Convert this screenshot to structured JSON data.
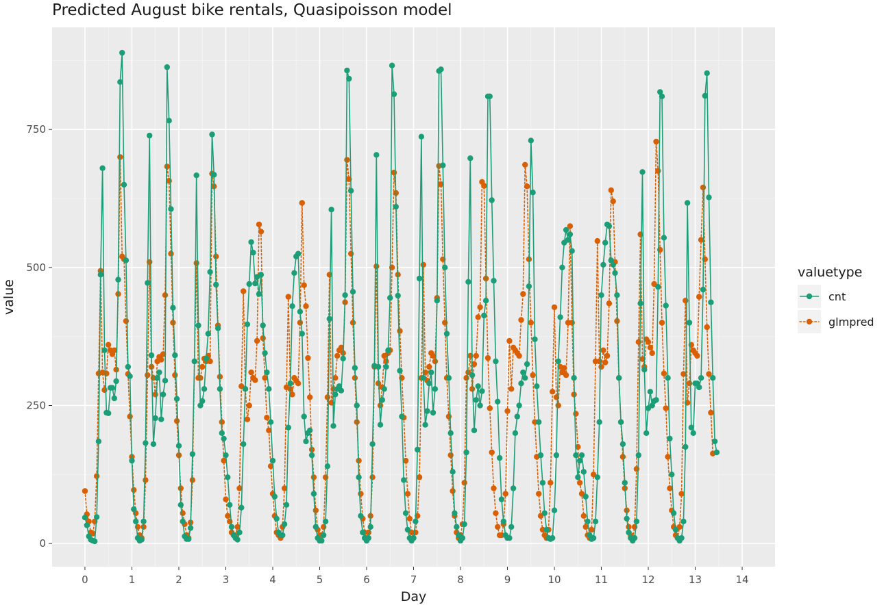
{
  "chart_data": {
    "type": "line",
    "title": "Predicted August bike rentals, Quasipoisson model",
    "xlabel": "Day",
    "ylabel": "value",
    "xlim": [
      -0.7,
      14.7
    ],
    "ylim": [
      -42,
      935
    ],
    "x_ticks": [
      0,
      1,
      2,
      3,
      4,
      5,
      6,
      7,
      8,
      9,
      10,
      11,
      12,
      13,
      14
    ],
    "x_tick_labels": [
      "0",
      "1",
      "2",
      "3",
      "4",
      "5",
      "6",
      "7",
      "8",
      "9",
      "10",
      "11",
      "12",
      "13",
      "14"
    ],
    "y_ticks": [
      0,
      250,
      500,
      750
    ],
    "y_tick_labels": [
      "0",
      "250",
      "500",
      "750"
    ],
    "grid": true,
    "legend": {
      "title": "valuetype",
      "position": "right"
    },
    "series": [
      {
        "name": "cnt",
        "color": "#1b9e77",
        "line": "solid",
        "values": [
          47,
          33,
          13,
          7,
          5,
          4,
          48,
          185,
          487,
          680,
          350,
          237,
          236,
          282,
          282,
          263,
          294,
          478,
          836,
          889,
          650,
          513,
          320,
          303,
          150,
          62,
          40,
          10,
          5,
          7,
          40,
          182,
          472,
          739,
          341,
          180,
          227,
          300,
          310,
          225,
          270,
          295,
          863,
          766,
          606,
          427,
          341,
          262,
          177,
          70,
          40,
          13,
          8,
          8,
          28,
          162,
          330,
          667,
          395,
          250,
          258,
          280,
          335,
          380,
          492,
          741,
          668,
          469,
          390,
          280,
          200,
          190,
          160,
          120,
          70,
          30,
          15,
          10,
          7,
          20,
          65,
          180,
          280,
          397,
          470,
          546,
          527,
          471,
          483,
          452,
          487,
          395,
          345,
          310,
          280,
          220,
          150,
          85,
          45,
          20,
          15,
          15,
          35,
          70,
          210,
          290,
          430,
          490,
          520,
          525,
          420,
          380,
          230,
          185,
          200,
          205,
          160,
          90,
          30,
          10,
          5,
          5,
          15,
          40,
          140,
          407,
          605,
          213,
          270,
          280,
          285,
          277,
          335,
          450,
          857,
          842,
          639,
          456,
          318,
          250,
          120,
          50,
          20,
          10,
          5,
          10,
          30,
          180,
          322,
          704,
          320,
          215,
          260,
          280,
          320,
          350,
          445,
          866,
          814,
          610,
          449,
          313,
          230,
          115,
          55,
          25,
          10,
          5,
          10,
          40,
          170,
          480,
          737,
          300,
          215,
          240,
          290,
          310,
          237,
          280,
          440,
          856,
          859,
          685,
          500,
          380,
          300,
          200,
          130,
          55,
          30,
          15,
          5,
          10,
          35,
          165,
          474,
          698,
          305,
          205,
          260,
          285,
          250,
          276,
          413,
          440,
          810,
          810,
          622,
          476,
          330,
          257,
          155,
          80,
          40,
          15,
          10,
          10,
          30,
          100,
          200,
          230,
          250,
          290,
          310,
          300,
          325,
          466,
          730,
          636,
          370,
          285,
          220,
          160,
          110,
          55,
          25,
          10,
          8,
          10,
          60,
          160,
          330,
          410,
          500,
          545,
          568,
          550,
          560,
          530,
          300,
          160,
          120,
          150,
          160,
          130,
          85,
          40,
          15,
          8,
          10,
          40,
          120,
          220,
          450,
          505,
          545,
          578,
          575,
          513,
          505,
          490,
          450,
          300,
          220,
          180,
          110,
          45,
          20,
          10,
          5,
          10,
          40,
          160,
          435,
          673,
          315,
          200,
          245,
          275,
          250,
          258,
          260,
          465,
          818,
          810,
          554,
          431,
          300,
          190,
          125,
          55,
          25,
          10,
          5,
          10,
          40,
          175,
          617,
          400,
          210,
          200,
          290,
          290,
          283,
          300,
          460,
          811,
          852,
          627,
          437,
          300,
          185,
          165
        ]
      },
      {
        "name": "glmpred",
        "color": "#d95f02",
        "line": "dotted",
        "values": [
          95,
          53,
          40,
          20,
          18,
          40,
          122,
          308,
          494,
          310,
          278,
          308,
          360,
          350,
          343,
          350,
          315,
          452,
          700,
          520,
          515,
          403,
          307,
          230,
          157,
          97,
          55,
          30,
          15,
          10,
          30,
          115,
          305,
          510,
          320,
          300,
          270,
          330,
          338,
          333,
          343,
          450,
          683,
          657,
          525,
          400,
          305,
          222,
          160,
          100,
          55,
          35,
          15,
          10,
          38,
          115,
          330,
          508,
          300,
          300,
          320,
          335,
          330,
          340,
          330,
          670,
          647,
          520,
          395,
          302,
          220,
          150,
          80,
          50,
          40,
          20,
          15,
          15,
          30,
          100,
          285,
          457,
          280,
          225,
          250,
          310,
          300,
          296,
          367,
          578,
          565,
          372,
          300,
          228,
          205,
          140,
          90,
          50,
          20,
          15,
          10,
          30,
          100,
          283,
          447,
          280,
          270,
          300,
          295,
          290,
          400,
          617,
          468,
          430,
          336,
          265,
          170,
          120,
          60,
          25,
          15,
          15,
          30,
          120,
          265,
          487,
          255,
          280,
          300,
          340,
          350,
          355,
          345,
          437,
          695,
          660,
          525,
          400,
          300,
          220,
          150,
          90,
          45,
          20,
          10,
          20,
          50,
          120,
          320,
          502,
          290,
          250,
          283,
          340,
          330,
          345,
          350,
          500,
          672,
          635,
          487,
          385,
          300,
          228,
          150,
          90,
          45,
          20,
          10,
          20,
          50,
          120,
          300,
          505,
          310,
          295,
          320,
          345,
          340,
          330,
          445,
          684,
          651,
          515,
          400,
          300,
          230,
          160,
          95,
          50,
          20,
          10,
          15,
          35,
          110,
          300,
          310,
          340,
          280,
          325,
          340,
          410,
          428,
          655,
          648,
          480,
          336,
          245,
          165,
          100,
          55,
          30,
          15,
          15,
          35,
          90,
          240,
          367,
          280,
          355,
          350,
          345,
          340,
          405,
          452,
          686,
          647,
          515,
          400,
          305,
          220,
          157,
          90,
          50,
          25,
          15,
          10,
          25,
          110,
          275,
          428,
          265,
          250,
          320,
          310,
          318,
          305,
          400,
          575,
          400,
          270,
          235,
          175,
          110,
          90,
          50,
          30,
          15,
          10,
          25,
          125,
          330,
          548,
          330,
          320,
          350,
          328,
          340,
          435,
          640,
          620,
          510,
          403,
          300,
          220,
          157,
          100,
          60,
          30,
          15,
          10,
          30,
          135,
          365,
          560,
          334,
          320,
          370,
          365,
          355,
          345,
          470,
          728,
          675,
          532,
          400,
          308,
          245,
          157,
          100,
          60,
          30,
          15,
          10,
          30,
          90,
          307,
          440,
          255,
          290,
          360,
          350,
          345,
          340,
          447,
          550,
          645,
          515,
          392,
          307,
          237,
          163
        ]
      }
    ]
  }
}
